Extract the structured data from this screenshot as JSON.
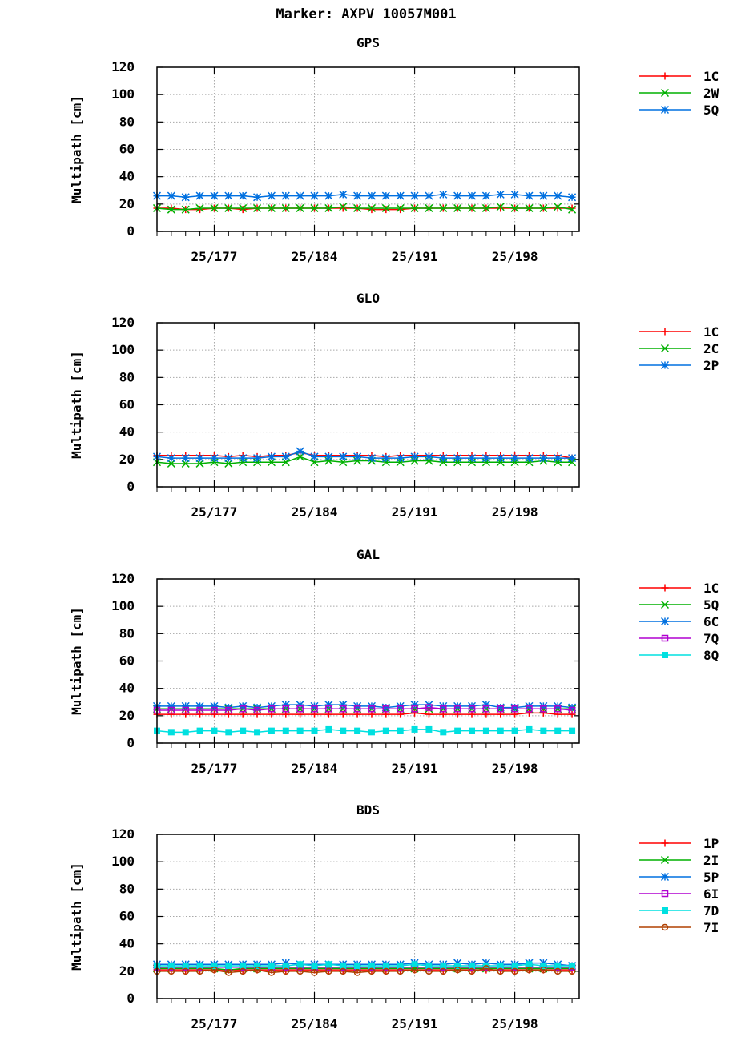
{
  "figure": {
    "title": "Marker: AXPV 10057M001"
  },
  "chart_data": [
    {
      "type": "line",
      "title": "GPS",
      "ylabel": "Multipath [cm]",
      "xlabel": "",
      "ylim": [
        0,
        120
      ],
      "yticks": [
        "0",
        "20",
        "40",
        "60",
        "80",
        "100",
        "120"
      ],
      "xlim": [
        173,
        202.5
      ],
      "xticks": [
        {
          "value": 177,
          "label": "25/177"
        },
        {
          "value": 184,
          "label": "25/184"
        },
        {
          "value": 191,
          "label": "25/191"
        },
        {
          "value": 198,
          "label": "25/198"
        }
      ],
      "grid": true,
      "legend": "right",
      "x": [
        173,
        174,
        175,
        176,
        177,
        178,
        179,
        180,
        181,
        182,
        183,
        184,
        185,
        186,
        187,
        188,
        189,
        190,
        191,
        192,
        193,
        194,
        195,
        196,
        197,
        198,
        199,
        200,
        201,
        202
      ],
      "series": [
        {
          "name": "1C",
          "color": "#ff0000",
          "marker": "plus",
          "values": [
            17,
            17,
            16,
            16,
            17,
            17,
            16,
            17,
            17,
            17,
            17,
            17,
            17,
            17,
            17,
            16,
            16,
            16,
            17,
            17,
            17,
            17,
            17,
            17,
            17,
            17,
            17,
            17,
            17,
            17
          ]
        },
        {
          "name": "2W",
          "color": "#00b000",
          "marker": "x",
          "values": [
            17,
            16,
            16,
            17,
            17,
            17,
            17,
            17,
            17,
            17,
            17,
            17,
            17,
            18,
            17,
            17,
            17,
            17,
            17,
            17,
            17,
            17,
            17,
            17,
            18,
            17,
            17,
            17,
            18,
            16
          ]
        },
        {
          "name": "5Q",
          "color": "#0070e0",
          "marker": "star",
          "values": [
            26,
            26,
            25,
            26,
            26,
            26,
            26,
            25,
            26,
            26,
            26,
            26,
            26,
            27,
            26,
            26,
            26,
            26,
            26,
            26,
            27,
            26,
            26,
            26,
            27,
            27,
            26,
            26,
            26,
            25
          ]
        }
      ]
    },
    {
      "type": "line",
      "title": "GLO",
      "ylabel": "Multipath [cm]",
      "xlabel": "",
      "ylim": [
        0,
        120
      ],
      "yticks": [
        "0",
        "20",
        "40",
        "60",
        "80",
        "100",
        "120"
      ],
      "xlim": [
        173,
        202.5
      ],
      "xticks": [
        {
          "value": 177,
          "label": "25/177"
        },
        {
          "value": 184,
          "label": "25/184"
        },
        {
          "value": 191,
          "label": "25/191"
        },
        {
          "value": 198,
          "label": "25/198"
        }
      ],
      "grid": true,
      "legend": "right",
      "x": [
        173,
        174,
        175,
        176,
        177,
        178,
        179,
        180,
        181,
        182,
        183,
        184,
        185,
        186,
        187,
        188,
        189,
        190,
        191,
        192,
        193,
        194,
        195,
        196,
        197,
        198,
        199,
        200,
        201,
        202
      ],
      "series": [
        {
          "name": "1C",
          "color": "#ff0000",
          "marker": "plus",
          "values": [
            23,
            23,
            23,
            23,
            23,
            22,
            23,
            22,
            23,
            23,
            25,
            23,
            23,
            23,
            23,
            23,
            22,
            23,
            23,
            23,
            23,
            23,
            23,
            23,
            23,
            23,
            23,
            23,
            23,
            21
          ]
        },
        {
          "name": "2C",
          "color": "#00b000",
          "marker": "x",
          "values": [
            18,
            17,
            17,
            17,
            18,
            17,
            18,
            18,
            18,
            18,
            22,
            18,
            19,
            18,
            19,
            19,
            18,
            18,
            19,
            19,
            18,
            18,
            18,
            18,
            18,
            18,
            18,
            19,
            18,
            18
          ]
        },
        {
          "name": "2P",
          "color": "#0070e0",
          "marker": "star",
          "values": [
            22,
            21,
            21,
            21,
            21,
            21,
            21,
            21,
            22,
            22,
            26,
            22,
            22,
            22,
            22,
            21,
            21,
            21,
            22,
            22,
            21,
            21,
            21,
            21,
            21,
            21,
            21,
            21,
            21,
            21
          ]
        }
      ]
    },
    {
      "type": "line",
      "title": "GAL",
      "ylabel": "Multipath [cm]",
      "xlabel": "",
      "ylim": [
        0,
        120
      ],
      "yticks": [
        "0",
        "20",
        "40",
        "60",
        "80",
        "100",
        "120"
      ],
      "xlim": [
        173,
        202.5
      ],
      "xticks": [
        {
          "value": 177,
          "label": "25/177"
        },
        {
          "value": 184,
          "label": "25/184"
        },
        {
          "value": 191,
          "label": "25/191"
        },
        {
          "value": 198,
          "label": "25/198"
        }
      ],
      "grid": true,
      "legend": "right",
      "x": [
        173,
        174,
        175,
        176,
        177,
        178,
        179,
        180,
        181,
        182,
        183,
        184,
        185,
        186,
        187,
        188,
        189,
        190,
        191,
        192,
        193,
        194,
        195,
        196,
        197,
        198,
        199,
        200,
        201,
        202
      ],
      "series": [
        {
          "name": "1C",
          "color": "#ff0000",
          "marker": "plus",
          "values": [
            21,
            21,
            21,
            21,
            21,
            21,
            21,
            21,
            21,
            21,
            21,
            21,
            21,
            21,
            21,
            21,
            21,
            21,
            22,
            21,
            21,
            21,
            21,
            21,
            21,
            21,
            22,
            22,
            21,
            21
          ]
        },
        {
          "name": "5Q",
          "color": "#00b000",
          "marker": "x",
          "values": [
            25,
            25,
            25,
            25,
            25,
            25,
            25,
            25,
            25,
            25,
            25,
            25,
            25,
            25,
            25,
            25,
            25,
            25,
            25,
            25,
            25,
            25,
            25,
            25,
            25,
            25,
            25,
            25,
            25,
            25
          ]
        },
        {
          "name": "6C",
          "color": "#0070e0",
          "marker": "star",
          "values": [
            27,
            27,
            27,
            27,
            27,
            26,
            27,
            26,
            27,
            28,
            28,
            27,
            28,
            28,
            27,
            27,
            26,
            27,
            28,
            28,
            27,
            27,
            27,
            28,
            26,
            26,
            27,
            27,
            27,
            26
          ]
        },
        {
          "name": "7Q",
          "color": "#b000d0",
          "marker": "square",
          "values": [
            24,
            24,
            24,
            24,
            24,
            24,
            25,
            24,
            25,
            25,
            25,
            25,
            25,
            25,
            25,
            25,
            25,
            25,
            25,
            26,
            25,
            25,
            25,
            25,
            25,
            25,
            25,
            25,
            25,
            24
          ]
        },
        {
          "name": "8Q",
          "color": "#00e0e0",
          "marker": "filled-square",
          "values": [
            9,
            8,
            8,
            9,
            9,
            8,
            9,
            8,
            9,
            9,
            9,
            9,
            10,
            9,
            9,
            8,
            9,
            9,
            10,
            10,
            8,
            9,
            9,
            9,
            9,
            9,
            10,
            9,
            9,
            9
          ]
        }
      ]
    },
    {
      "type": "line",
      "title": "BDS",
      "ylabel": "Multipath [cm]",
      "xlabel": "",
      "ylim": [
        0,
        120
      ],
      "yticks": [
        "0",
        "20",
        "40",
        "60",
        "80",
        "100",
        "120"
      ],
      "xlim": [
        173,
        202.5
      ],
      "xticks": [
        {
          "value": 177,
          "label": "25/177"
        },
        {
          "value": 184,
          "label": "25/184"
        },
        {
          "value": 191,
          "label": "25/191"
        },
        {
          "value": 198,
          "label": "25/198"
        }
      ],
      "grid": true,
      "legend": "right",
      "x": [
        173,
        174,
        175,
        176,
        177,
        178,
        179,
        180,
        181,
        182,
        183,
        184,
        185,
        186,
        187,
        188,
        189,
        190,
        191,
        192,
        193,
        194,
        195,
        196,
        197,
        198,
        199,
        200,
        201,
        202
      ],
      "series": [
        {
          "name": "1P",
          "color": "#ff0000",
          "marker": "plus",
          "values": [
            21,
            21,
            21,
            21,
            21,
            21,
            21,
            21,
            21,
            21,
            21,
            21,
            21,
            21,
            21,
            21,
            21,
            21,
            21,
            21,
            21,
            21,
            21,
            21,
            21,
            21,
            21,
            21,
            21,
            21
          ]
        },
        {
          "name": "2I",
          "color": "#00b000",
          "marker": "x",
          "values": [
            22,
            22,
            22,
            22,
            22,
            21,
            22,
            22,
            22,
            22,
            22,
            22,
            22,
            22,
            22,
            22,
            22,
            22,
            22,
            22,
            22,
            22,
            22,
            22,
            22,
            22,
            22,
            22,
            22,
            22
          ]
        },
        {
          "name": "5P",
          "color": "#0070e0",
          "marker": "star",
          "values": [
            25,
            25,
            25,
            25,
            25,
            25,
            25,
            25,
            25,
            26,
            25,
            25,
            25,
            25,
            25,
            25,
            25,
            25,
            26,
            25,
            25,
            26,
            25,
            26,
            25,
            25,
            26,
            26,
            25,
            24
          ]
        },
        {
          "name": "6I",
          "color": "#b000d0",
          "marker": "square",
          "values": [
            23,
            23,
            23,
            23,
            23,
            23,
            23,
            23,
            23,
            23,
            23,
            23,
            23,
            23,
            23,
            23,
            23,
            23,
            23,
            23,
            23,
            23,
            23,
            23,
            23,
            23,
            23,
            23,
            23,
            23
          ]
        },
        {
          "name": "7D",
          "color": "#00e0e0",
          "marker": "filled-square",
          "values": [
            24,
            24,
            24,
            24,
            24,
            24,
            24,
            24,
            24,
            24,
            25,
            24,
            25,
            24,
            24,
            24,
            24,
            24,
            25,
            24,
            24,
            24,
            24,
            24,
            24,
            24,
            25,
            24,
            24,
            24
          ]
        },
        {
          "name": "7I",
          "color": "#b04000",
          "marker": "circle",
          "values": [
            20,
            20,
            20,
            20,
            21,
            19,
            20,
            21,
            19,
            20,
            20,
            19,
            20,
            20,
            19,
            20,
            20,
            20,
            21,
            20,
            20,
            21,
            20,
            22,
            20,
            20,
            21,
            21,
            20,
            20
          ]
        }
      ]
    }
  ]
}
